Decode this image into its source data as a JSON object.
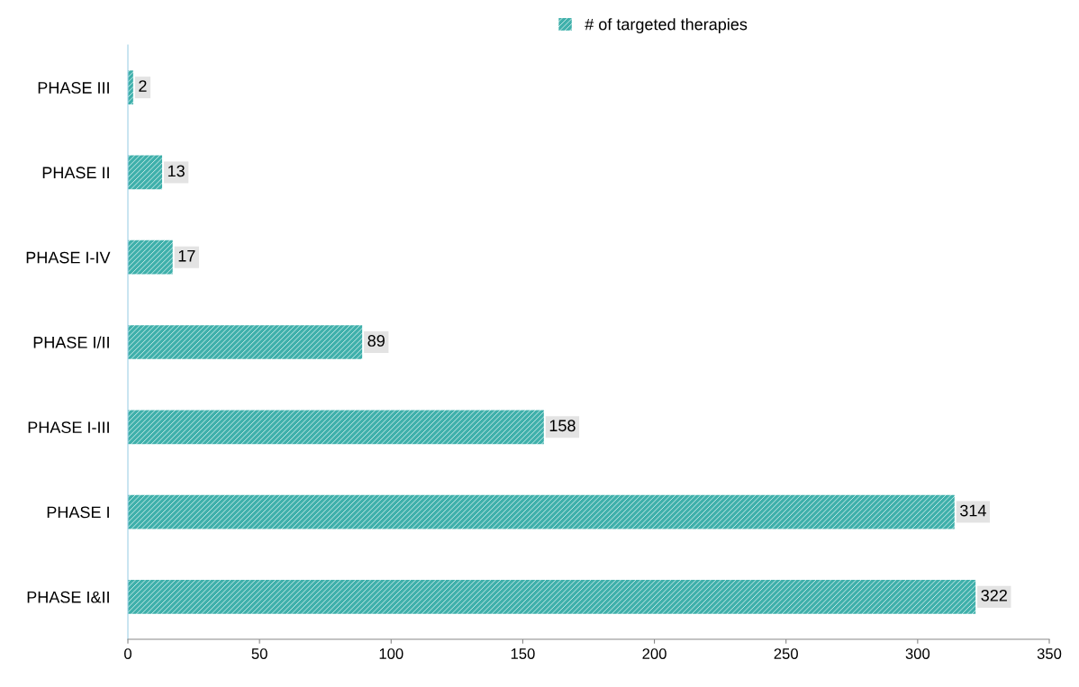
{
  "chart_data": {
    "type": "bar",
    "orientation": "horizontal",
    "categories": [
      "PHASE III",
      "PHASE II",
      "PHASE I-IV",
      "PHASE I/II",
      "PHASE I-III",
      "PHASE I",
      "PHASE I&II"
    ],
    "series": [
      {
        "name": "# of targeted therapies",
        "color": "#3fb0ab",
        "values": [
          2,
          13,
          17,
          89,
          158,
          314,
          322
        ]
      }
    ],
    "xlim": [
      0,
      350
    ],
    "xticks": [
      0,
      50,
      100,
      150,
      200,
      250,
      300,
      350
    ],
    "data_labels": true,
    "legend": "top",
    "grid": false
  }
}
